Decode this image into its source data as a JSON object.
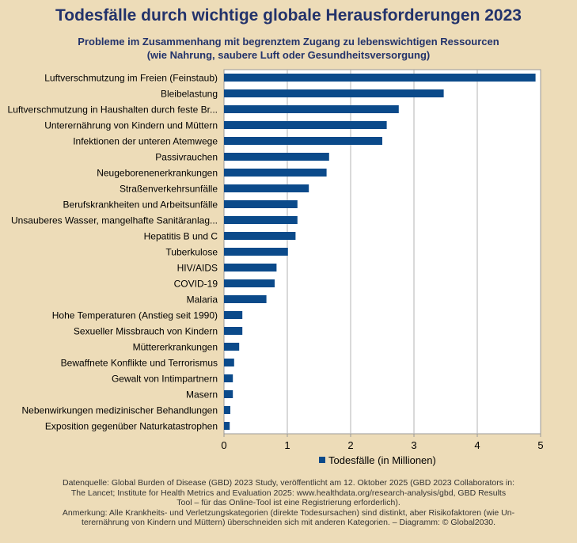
{
  "header": {
    "title": "Todesfälle durch wichtige globale Herausforderungen 2023",
    "subtitle_line1": "Probleme im Zusammenhang mit begrenztem Zugang zu lebenswichtigen Ressourcen",
    "subtitle_line2": "(wie Nahrung, saubere Luft oder Gesundheitsversorgung)"
  },
  "footer": {
    "line1": "Datenquelle: Global Burden of Disease (GBD) 2023 Study, veröffentlicht am 12. Oktober 2025 (GBD 2023 Collaborators in:",
    "line2": "The Lancet; Institute for Health Metrics and Evaluation 2025: www.healthdata.org/research-analysis/gbd, GBD Results",
    "line3": "Tool – für das Online-Tool ist eine Registrierung erforderlich).",
    "line4": "Anmerkung: Alle Krankheits- und Verletzungskategorien (direkte Todesursachen) sind distinkt, aber Risikofaktoren (wie Un-",
    "line5": "terernährung von Kindern und Müttern) überschneiden sich mit anderen Kategorien. – Diagramm: © Global2030."
  },
  "colors": {
    "bar": "#0b4a8a",
    "background": "#eddcb8",
    "plot_background": "#ffffff",
    "title": "#23336b"
  },
  "chart_data": {
    "type": "bar",
    "orientation": "horizontal",
    "categories": [
      "Luftverschmutzung im Freien (Feinstaub)",
      "Bleibelastung",
      "Luftverschmutzung in Haushalten durch feste Br...",
      "Unterernährung von Kindern und Müttern",
      "Infektionen der unteren Atemwege",
      "Passivrauchen",
      "Neugeborenenerkrankungen",
      "Straßenverkehrsunfälle",
      "Berufskrankheiten und Arbeitsunfälle",
      "Unsauberes Wasser, mangelhafte Sanitäranlag...",
      "Hepatitis B und C",
      "Tuberkulose",
      "HIV/AIDS",
      "COVID-19",
      "Malaria",
      "Hohe Temperaturen (Anstieg seit 1990)",
      "Sexueller Missbrauch von Kindern",
      "Müttererkrankungen",
      "Bewaffnete Konflikte und Terrorismus",
      "Gewalt von Intimpartnern",
      "Masern",
      "Nebenwirkungen medizinischer Behandlungen",
      "Exposition gegenüber Naturkatastrophen"
    ],
    "series": [
      {
        "name": "Todesfälle (in Millionen)",
        "values": [
          4.92,
          3.47,
          2.76,
          2.57,
          2.5,
          1.66,
          1.62,
          1.34,
          1.16,
          1.16,
          1.13,
          1.01,
          0.83,
          0.8,
          0.67,
          0.29,
          0.29,
          0.24,
          0.16,
          0.14,
          0.14,
          0.1,
          0.09
        ]
      }
    ],
    "xlim": [
      0,
      5
    ],
    "xticks": [
      "0",
      "1",
      "2",
      "3",
      "4",
      "5"
    ],
    "grid": true,
    "legend_position": "bottom"
  }
}
